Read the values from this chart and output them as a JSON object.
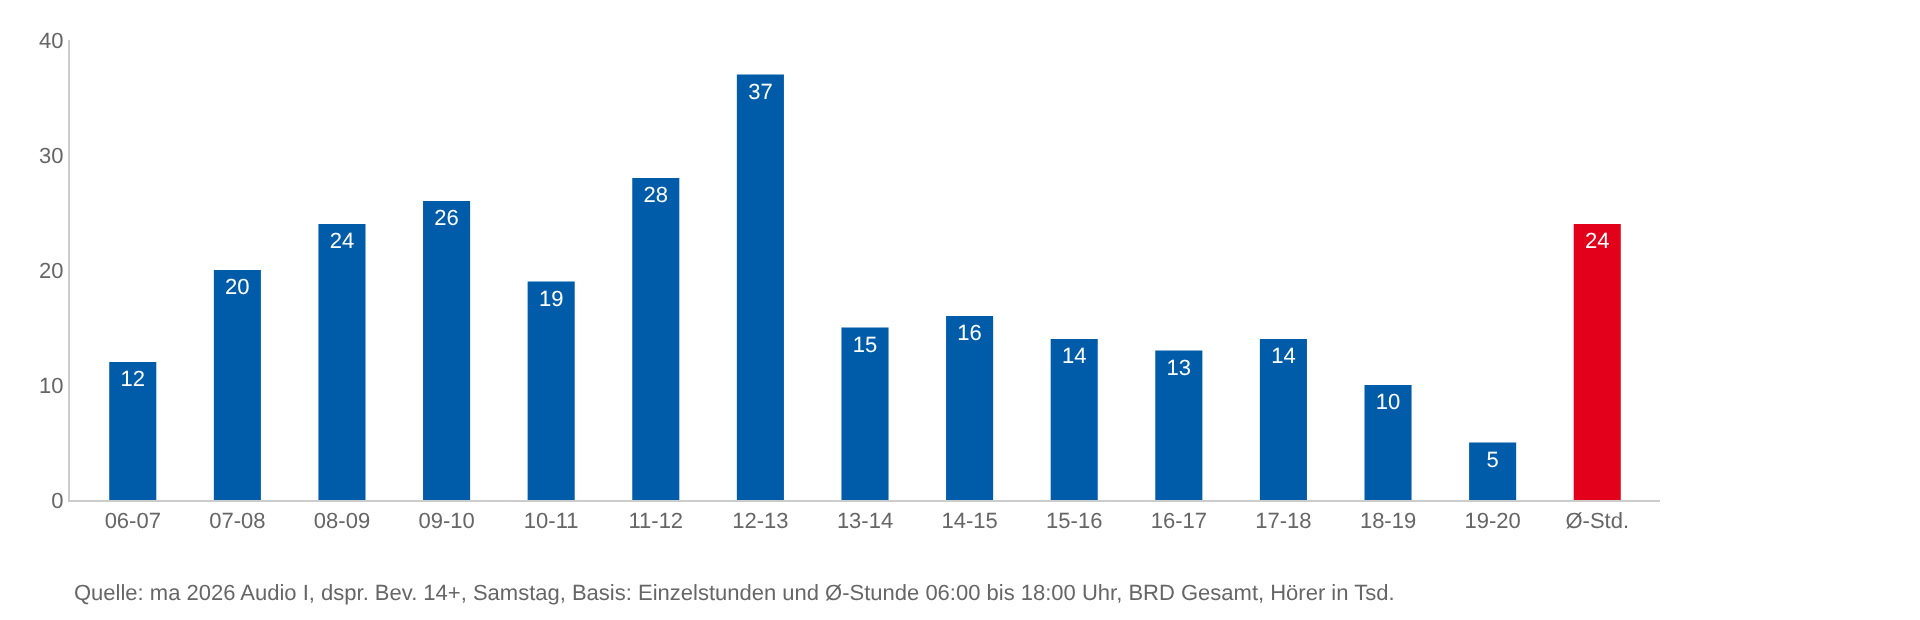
{
  "chart_data": {
    "type": "bar",
    "categories": [
      "06-07",
      "07-08",
      "08-09",
      "09-10",
      "10-11",
      "11-12",
      "12-13",
      "13-14",
      "14-15",
      "15-16",
      "16-17",
      "17-18",
      "18-19",
      "19-20",
      "Ø-Std."
    ],
    "values": [
      12,
      20,
      24,
      26,
      19,
      28,
      37,
      15,
      16,
      14,
      13,
      14,
      10,
      5,
      24
    ],
    "colors": [
      "#005ca9",
      "#005ca9",
      "#005ca9",
      "#005ca9",
      "#005ca9",
      "#005ca9",
      "#005ca9",
      "#005ca9",
      "#005ca9",
      "#005ca9",
      "#005ca9",
      "#005ca9",
      "#005ca9",
      "#005ca9",
      "#e2001a"
    ],
    "ylim": [
      0,
      40
    ],
    "yticks": [
      0,
      10,
      20,
      30,
      40
    ],
    "data_labels": true,
    "legend": false,
    "annotations": [
      "Quelle: ma 2026 Audio I, dspr. Bev. 14+, Samstag, Basis: Einzelstunden und Ø-Stunde 06:00 bis 18:00 Uhr, BRD Gesamt, Hörer in Tsd."
    ]
  }
}
